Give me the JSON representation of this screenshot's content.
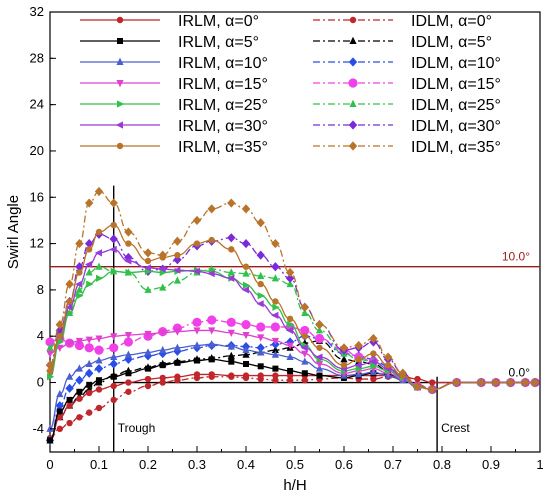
{
  "chart_data": {
    "type": "line",
    "xlabel": "h/H",
    "ylabel": "Swirl Angle",
    "xlim": [
      0,
      1
    ],
    "ylim": [
      -6,
      32
    ],
    "x_ticks": [
      "0",
      "0.1",
      "0.2",
      "0.3",
      "0.4",
      "0.5",
      "0.6",
      "0.7",
      "0.8",
      "0.9",
      "1"
    ],
    "y_ticks": [
      "-4",
      "0",
      "4",
      "8",
      "12",
      "16",
      "20",
      "24",
      "28",
      "32"
    ],
    "grid": false,
    "legend_position": "top",
    "x": [
      0.0,
      0.02,
      0.04,
      0.06,
      0.08,
      0.1,
      0.13,
      0.16,
      0.2,
      0.23,
      0.26,
      0.3,
      0.33,
      0.37,
      0.4,
      0.43,
      0.46,
      0.49,
      0.52,
      0.55,
      0.6,
      0.63,
      0.66,
      0.69,
      0.72,
      0.75,
      0.78,
      0.83,
      0.88,
      0.91,
      0.94,
      0.97,
      0.99
    ],
    "series": [
      {
        "name": "IRLM, α=0°",
        "color": "#c0262b",
        "dash": "solid",
        "marker": "circle",
        "values": [
          -5.0,
          -3.0,
          -2.0,
          -1.4,
          -0.9,
          -0.6,
          -0.3,
          0.0,
          0.3,
          0.4,
          0.5,
          0.7,
          0.7,
          0.6,
          0.6,
          0.6,
          0.6,
          0.6,
          0.6,
          0.6,
          0.6,
          0.6,
          0.6,
          0.6,
          0.5,
          0.3,
          0.0,
          0.0,
          0.0,
          0.0,
          0.0,
          0.0,
          0.0
        ]
      },
      {
        "name": "IRLM, α=5°",
        "color": "#000000",
        "dash": "solid",
        "marker": "square",
        "values": [
          -5.0,
          -2.5,
          -1.5,
          -0.8,
          -0.2,
          0.2,
          0.5,
          0.8,
          1.2,
          1.5,
          1.7,
          1.9,
          2.0,
          1.8,
          1.6,
          1.4,
          1.2,
          1.0,
          0.8,
          0.6,
          0.4,
          0.6,
          0.8,
          0.7,
          0.3,
          -0.4,
          -0.6,
          0.0,
          0.0,
          0.0,
          0.0,
          0.0,
          0.0
        ]
      },
      {
        "name": "IRLM, α=10°",
        "color": "#4a5fd0",
        "dash": "solid",
        "marker": "triangle-up",
        "values": [
          -4.0,
          -1.0,
          0.5,
          1.2,
          1.6,
          1.9,
          2.2,
          2.4,
          2.6,
          2.8,
          3.0,
          3.2,
          3.3,
          3.1,
          2.8,
          2.6,
          2.4,
          2.2,
          1.8,
          1.2,
          0.6,
          0.7,
          0.9,
          0.6,
          0.2,
          -0.4,
          -0.6,
          0.0,
          0.0,
          0.0,
          0.0,
          0.0,
          0.0
        ]
      },
      {
        "name": "IRLM, α=15°",
        "color": "#e040d0",
        "dash": "solid",
        "marker": "triangle-down",
        "values": [
          2.5,
          3.0,
          3.4,
          3.6,
          3.7,
          3.8,
          4.0,
          4.1,
          4.2,
          4.3,
          4.4,
          4.5,
          4.5,
          4.3,
          4.1,
          3.9,
          3.6,
          3.2,
          2.5,
          1.6,
          0.8,
          1.0,
          1.2,
          0.8,
          0.3,
          -0.4,
          -0.6,
          0.0,
          0.0,
          0.0,
          0.0,
          0.0,
          0.0
        ]
      },
      {
        "name": "IRLM, α=25°",
        "color": "#33c04a",
        "dash": "solid",
        "marker": "triangle-right",
        "values": [
          0.5,
          3.5,
          6.0,
          7.5,
          8.5,
          9.0,
          9.6,
          9.5,
          9.6,
          9.5,
          9.6,
          9.7,
          9.6,
          9.0,
          8.4,
          7.5,
          6.5,
          5.0,
          3.2,
          2.0,
          1.0,
          1.2,
          1.4,
          1.0,
          0.4,
          -0.4,
          -0.6,
          0.0,
          0.0,
          0.0,
          0.0,
          0.0,
          0.0
        ]
      },
      {
        "name": "IRLM, α=30°",
        "color": "#9a3ad8",
        "dash": "solid",
        "marker": "triangle-left",
        "values": [
          1.0,
          4.0,
          6.5,
          8.5,
          10.2,
          11.2,
          11.5,
          10.5,
          9.9,
          9.8,
          9.7,
          9.6,
          9.4,
          9.0,
          8.0,
          6.8,
          5.8,
          4.5,
          3.0,
          2.2,
          1.2,
          1.5,
          1.8,
          1.2,
          0.5,
          -0.4,
          -0.6,
          0.0,
          0.0,
          0.0,
          0.0,
          0.0,
          0.0
        ]
      },
      {
        "name": "IRLM, α=35°",
        "color": "#b8742a",
        "dash": "solid",
        "marker": "circle",
        "values": [
          1.0,
          4.0,
          7.0,
          9.5,
          11.5,
          13.0,
          13.6,
          12.0,
          10.5,
          10.8,
          11.0,
          12.0,
          12.3,
          11.5,
          10.0,
          8.5,
          7.0,
          5.5,
          4.0,
          3.0,
          1.5,
          2.0,
          2.5,
          1.5,
          0.6,
          -0.4,
          -0.6,
          0.0,
          0.0,
          0.0,
          0.0,
          0.0,
          0.0
        ]
      },
      {
        "name": "IDLM, α=0°",
        "color": "#c0262b",
        "dash": "dashdot",
        "marker": "circle",
        "values": [
          -4.8,
          -4.0,
          -3.5,
          -3.0,
          -2.6,
          -2.2,
          -1.5,
          -0.8,
          -0.3,
          0.0,
          0.2,
          0.4,
          0.5,
          0.5,
          0.4,
          0.3,
          0.2,
          0.2,
          0.2,
          0.3,
          0.4,
          0.3,
          0.3,
          0.5,
          0.3,
          -0.2,
          -0.6,
          0.0,
          0.0,
          0.0,
          0.0,
          0.0,
          0.0
        ]
      },
      {
        "name": "IDLM, α=5°",
        "color": "#000000",
        "dash": "dashdot",
        "marker": "triangle-up",
        "values": [
          -5.0,
          -3.0,
          -2.0,
          -1.2,
          -0.6,
          0.0,
          0.6,
          1.0,
          1.3,
          1.6,
          1.8,
          2.0,
          2.1,
          2.3,
          2.4,
          2.6,
          2.8,
          3.0,
          3.4,
          3.6,
          2.0,
          1.8,
          1.6,
          1.0,
          0.4,
          -0.4,
          -0.6,
          0.0,
          0.0,
          0.0,
          0.0,
          0.0,
          0.0
        ]
      },
      {
        "name": "IDLM, α=10°",
        "color": "#2a4de8",
        "dash": "dashdot",
        "marker": "diamond",
        "values": [
          -5.0,
          -2.0,
          -0.5,
          0.2,
          0.8,
          1.2,
          1.6,
          2.0,
          2.3,
          2.5,
          2.7,
          3.0,
          3.2,
          3.2,
          3.1,
          3.0,
          3.3,
          3.5,
          4.0,
          3.8,
          2.5,
          2.3,
          2.0,
          1.4,
          0.6,
          -0.3,
          -0.6,
          0.0,
          0.0,
          0.0,
          0.0,
          0.0,
          0.0
        ]
      },
      {
        "name": "IDLM, α=15°",
        "color": "#f040e8",
        "dash": "dashdot",
        "marker": "circle-lg",
        "values": [
          3.5,
          3.8,
          3.4,
          3.2,
          3.0,
          2.8,
          3.0,
          3.5,
          4.0,
          4.4,
          4.7,
          5.2,
          5.4,
          5.2,
          5.0,
          4.8,
          4.8,
          4.8,
          4.5,
          3.8,
          2.8,
          2.2,
          1.8,
          1.2,
          0.5,
          -0.3,
          -0.6,
          0.0,
          0.0,
          0.0,
          0.0,
          0.0,
          0.0
        ]
      },
      {
        "name": "IDLM, α=25°",
        "color": "#2ec24a",
        "dash": "dashdot",
        "marker": "triangle-up",
        "values": [
          3.0,
          4.0,
          6.0,
          8.0,
          9.5,
          10.0,
          9.6,
          9.5,
          8.0,
          8.2,
          8.8,
          9.5,
          9.8,
          9.5,
          9.4,
          9.2,
          9.0,
          8.5,
          6.0,
          4.5,
          2.5,
          2.0,
          1.8,
          1.2,
          0.5,
          -0.3,
          -0.6,
          0.0,
          0.0,
          0.0,
          0.0,
          0.0,
          0.0
        ]
      },
      {
        "name": "IDLM, α=30°",
        "color": "#7a2ad8",
        "dash": "dashdot",
        "marker": "diamond",
        "values": [
          1.5,
          4.5,
          7.0,
          10.0,
          12.0,
          12.8,
          12.4,
          10.8,
          9.6,
          9.8,
          10.6,
          11.8,
          12.2,
          12.5,
          12.0,
          11.0,
          10.0,
          9.0,
          6.5,
          5.0,
          2.8,
          3.0,
          3.5,
          2.0,
          0.8,
          -0.3,
          -0.6,
          0.0,
          0.0,
          0.0,
          0.0,
          0.0,
          0.0
        ]
      },
      {
        "name": "IDLM, α=35°",
        "color": "#b8742a",
        "dash": "dashdot",
        "marker": "diamond",
        "values": [
          1.5,
          5.0,
          8.5,
          12.0,
          15.5,
          16.5,
          15.5,
          13.0,
          11.2,
          11.0,
          12.2,
          14.0,
          15.0,
          15.5,
          15.0,
          13.8,
          12.0,
          9.5,
          6.5,
          5.0,
          3.0,
          3.2,
          3.8,
          2.2,
          0.8,
          -0.3,
          -0.6,
          0.0,
          0.0,
          0.0,
          0.0,
          0.0,
          0.0
        ]
      }
    ],
    "reference_lines": [
      {
        "axis": "y",
        "value": 10.0,
        "label": "10.0°",
        "color": "#9b1b1b"
      },
      {
        "axis": "y",
        "value": 0.0,
        "label": "0.0°",
        "color": "#000000"
      },
      {
        "axis": "x",
        "value": 0.13,
        "label": "Trough",
        "color": "#000000"
      },
      {
        "axis": "x",
        "value": 0.79,
        "label": "Crest",
        "color": "#000000"
      }
    ]
  }
}
